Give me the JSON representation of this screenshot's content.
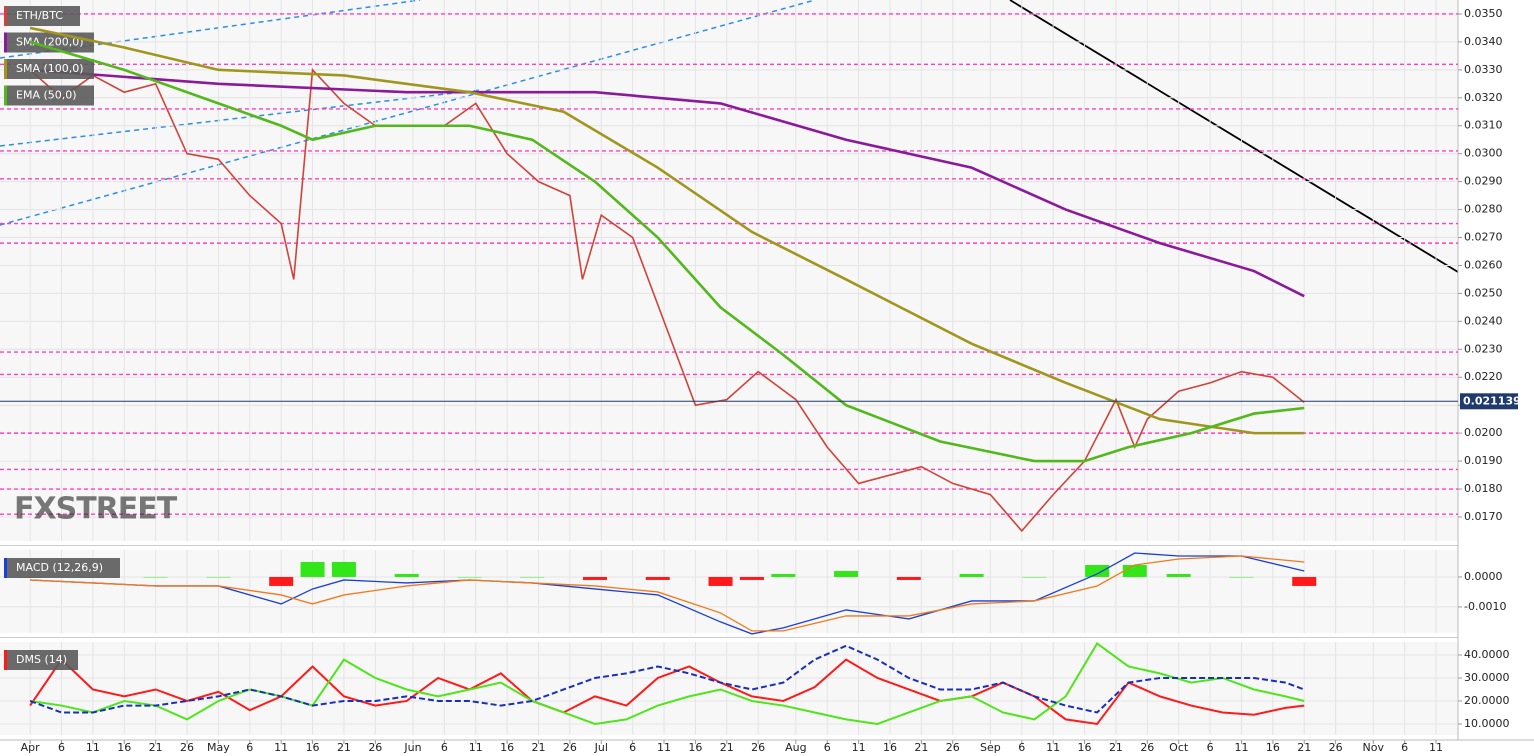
{
  "chart_data": [
    {
      "type": "line",
      "watermark": "FXSTREET",
      "xlim": [
        -4.8,
        227.5
      ],
      "ylim": [
        0.01614,
        0.0355
      ],
      "yticks": [
        {
          "value": 0.035,
          "label": "0.0350"
        },
        {
          "value": 0.034,
          "label": "0.0340"
        },
        {
          "value": 0.033,
          "label": "0.0330"
        },
        {
          "value": 0.032,
          "label": "0.0320"
        },
        {
          "value": 0.031,
          "label": "0.0310"
        },
        {
          "value": 0.03,
          "label": "0.0300"
        },
        {
          "value": 0.029,
          "label": "0.0290"
        },
        {
          "value": 0.028,
          "label": "0.0280"
        },
        {
          "value": 0.027,
          "label": "0.0270"
        },
        {
          "value": 0.026,
          "label": "0.0260"
        },
        {
          "value": 0.025,
          "label": "0.0250"
        },
        {
          "value": 0.024,
          "label": "0.0240"
        },
        {
          "value": 0.023,
          "label": "0.0230"
        },
        {
          "value": 0.022,
          "label": "0.0220"
        },
        {
          "value": 0.021,
          "label": "0.0210"
        },
        {
          "value": 0.02,
          "label": "0.0200"
        },
        {
          "value": 0.019,
          "label": "0.0190"
        },
        {
          "value": 0.018,
          "label": "0.0180"
        },
        {
          "value": 0.017,
          "label": "0.0170"
        }
      ],
      "grid": true,
      "levels": [
        0.035,
        0.0332,
        0.0316,
        0.0301,
        0.0291,
        0.0275,
        0.0268,
        0.0229,
        0.0221,
        0.02,
        0.0187,
        0.018,
        0.0171
      ],
      "level_color": "#ff3fc0",
      "last_price": {
        "value": 0.021139,
        "label": "0.021139"
      },
      "last_color": "#1e3a6e",
      "series": [
        {
          "name": "ETH/BTC",
          "color": "#d0433a",
          "x": [
            0,
            5,
            10,
            15,
            20,
            25,
            30,
            35,
            40,
            42,
            45,
            50,
            55,
            61,
            66,
            71,
            76,
            81,
            86,
            88,
            91,
            96,
            101,
            106,
            111,
            116,
            122,
            127,
            132,
            137,
            142,
            147,
            153,
            158,
            163,
            168,
            173,
            176,
            178,
            183,
            188,
            193,
            198,
            203
          ],
          "values": [
            0.033,
            0.032,
            0.0328,
            0.0322,
            0.0325,
            0.03,
            0.0298,
            0.0285,
            0.0275,
            0.0255,
            0.033,
            0.0318,
            0.031,
            0.031,
            0.031,
            0.0318,
            0.03,
            0.029,
            0.0285,
            0.0255,
            0.0278,
            0.027,
            0.024,
            0.021,
            0.0212,
            0.0222,
            0.0212,
            0.0195,
            0.0182,
            0.0185,
            0.0188,
            0.0182,
            0.0178,
            0.0165,
            0.0178,
            0.019,
            0.0212,
            0.0195,
            0.0205,
            0.0215,
            0.0218,
            0.0222,
            0.022,
            0.0211
          ]
        },
        {
          "name": "SMA (200,0)",
          "color": "#8b1a9b",
          "x": [
            0,
            30,
            60,
            90,
            110,
            130,
            150,
            165,
            180,
            195,
            203
          ],
          "values": [
            0.033,
            0.0325,
            0.0322,
            0.0322,
            0.0318,
            0.0305,
            0.0295,
            0.028,
            0.0268,
            0.0258,
            0.0249
          ]
        },
        {
          "name": "SMA (100,0)",
          "color": "#a0961e",
          "x": [
            0,
            15,
            30,
            50,
            70,
            85,
            100,
            115,
            130,
            150,
            165,
            180,
            195,
            203
          ],
          "values": [
            0.0345,
            0.0338,
            0.033,
            0.0328,
            0.0322,
            0.0315,
            0.0295,
            0.0272,
            0.0255,
            0.0232,
            0.0218,
            0.0205,
            0.02,
            0.02
          ]
        },
        {
          "name": "EMA (50,0)",
          "color": "#52b81c",
          "x": [
            0,
            15,
            30,
            40,
            45,
            55,
            70,
            80,
            90,
            100,
            110,
            120,
            130,
            145,
            160,
            168,
            175,
            185,
            195,
            203
          ],
          "values": [
            0.034,
            0.033,
            0.0318,
            0.031,
            0.0305,
            0.031,
            0.031,
            0.0305,
            0.029,
            0.027,
            0.0245,
            0.0228,
            0.021,
            0.0197,
            0.019,
            0.019,
            0.0195,
            0.02,
            0.0207,
            0.0209
          ]
        }
      ]
    },
    {
      "type": "macd",
      "title": "MACD (12,26,9)",
      "xlim": [
        -4.8,
        227.5
      ],
      "ylim": [
        -0.00187,
        0.0009
      ],
      "yticks": [
        {
          "value": 0,
          "label": "0.0000"
        },
        {
          "value": -0.001,
          "label": "-0.0010"
        }
      ],
      "x": [
        0,
        10,
        20,
        30,
        40,
        45,
        50,
        60,
        70,
        80,
        90,
        100,
        110,
        115,
        120,
        130,
        140,
        150,
        160,
        170,
        176,
        183,
        193,
        203
      ],
      "histogram": [
        0,
        0,
        0,
        0,
        -0.0003,
        0.0005,
        0.0005,
        0.0001,
        0,
        0,
        -0.0001,
        -0.0001,
        -0.0003,
        -0.0001,
        0.0001,
        0.0002,
        -0.0001,
        0.0001,
        0,
        0.0004,
        0.0004,
        0.0001,
        0,
        -0.0003
      ],
      "up_color": "#33e61a",
      "down_color": "#ff1a1a",
      "series": [
        {
          "color": "#1a3fd6",
          "values": [
            -0.0001,
            -0.0002,
            -0.0003,
            -0.0003,
            -0.0009,
            -0.0004,
            -0.0001,
            -0.0002,
            -0.0001,
            -0.0002,
            -0.0004,
            -0.0006,
            -0.0015,
            -0.0019,
            -0.0017,
            -0.0011,
            -0.0014,
            -0.0008,
            -0.0008,
            0.0001,
            0.0008,
            0.0007,
            0.0007,
            0.0002
          ]
        },
        {
          "color": "#f07a1a",
          "values": [
            -0.0001,
            -0.0002,
            -0.0003,
            -0.0003,
            -0.0006,
            -0.0009,
            -0.0006,
            -0.0003,
            -0.0001,
            -0.0002,
            -0.0003,
            -0.0005,
            -0.0012,
            -0.0018,
            -0.0018,
            -0.0013,
            -0.0013,
            -0.0009,
            -0.0008,
            -0.0003,
            0.0004,
            0.0006,
            0.0007,
            0.0005
          ]
        }
      ]
    },
    {
      "type": "dms",
      "title": "DMS (14)",
      "xlim": [
        -4.8,
        227.5
      ],
      "ylim": [
        5.2,
        45.65
      ],
      "yticks": [
        {
          "value": 40,
          "label": "40.0000"
        },
        {
          "value": 30,
          "label": "30.0000"
        },
        {
          "value": 20,
          "label": "20.0000"
        },
        {
          "value": 10,
          "label": "10.0000"
        }
      ],
      "xticks": [
        {
          "value": 0,
          "label": "Apr"
        },
        {
          "value": 5,
          "label": "6"
        },
        {
          "value": 10,
          "label": "11"
        },
        {
          "value": 15,
          "label": "16"
        },
        {
          "value": 20,
          "label": "21"
        },
        {
          "value": 25,
          "label": "26"
        },
        {
          "value": 30,
          "label": "May"
        },
        {
          "value": 35,
          "label": "6"
        },
        {
          "value": 40,
          "label": "11"
        },
        {
          "value": 45,
          "label": "16"
        },
        {
          "value": 50,
          "label": "21"
        },
        {
          "value": 55,
          "label": "26"
        },
        {
          "value": 61,
          "label": "Jun"
        },
        {
          "value": 66,
          "label": "6"
        },
        {
          "value": 71,
          "label": "11"
        },
        {
          "value": 76,
          "label": "16"
        },
        {
          "value": 81,
          "label": "21"
        },
        {
          "value": 86,
          "label": "26"
        },
        {
          "value": 91,
          "label": "Jul"
        },
        {
          "value": 96,
          "label": "6"
        },
        {
          "value": 101,
          "label": "11"
        },
        {
          "value": 106,
          "label": "16"
        },
        {
          "value": 111,
          "label": "21"
        },
        {
          "value": 116,
          "label": "26"
        },
        {
          "value": 122,
          "label": "Aug"
        },
        {
          "value": 127,
          "label": "6"
        },
        {
          "value": 132,
          "label": "11"
        },
        {
          "value": 137,
          "label": "16"
        },
        {
          "value": 142,
          "label": "21"
        },
        {
          "value": 147,
          "label": "26"
        },
        {
          "value": 153,
          "label": "Sep"
        },
        {
          "value": 158,
          "label": "6"
        },
        {
          "value": 163,
          "label": "11"
        },
        {
          "value": 168,
          "label": "16"
        },
        {
          "value": 173,
          "label": "21"
        },
        {
          "value": 178,
          "label": "26"
        },
        {
          "value": 183,
          "label": "Oct"
        },
        {
          "value": 188,
          "label": "6"
        },
        {
          "value": 193,
          "label": "11"
        },
        {
          "value": 198,
          "label": "16"
        },
        {
          "value": 203,
          "label": "21"
        },
        {
          "value": 208,
          "label": "26"
        },
        {
          "value": 214,
          "label": "Nov"
        },
        {
          "value": 219,
          "label": "6"
        },
        {
          "value": 224,
          "label": "11"
        }
      ],
      "x": [
        0,
        5,
        10,
        15,
        20,
        25,
        30,
        35,
        40,
        45,
        50,
        55,
        60,
        65,
        70,
        75,
        80,
        85,
        90,
        95,
        100,
        105,
        110,
        115,
        120,
        125,
        130,
        135,
        140,
        145,
        150,
        155,
        160,
        165,
        170,
        175,
        180,
        185,
        190,
        195,
        200,
        203
      ],
      "series": [
        {
          "color": "#ff1a1a",
          "values": [
            18,
            38,
            25,
            22,
            25,
            20,
            24,
            16,
            22,
            35,
            22,
            18,
            20,
            30,
            25,
            32,
            20,
            15,
            22,
            18,
            30,
            35,
            28,
            22,
            20,
            26,
            38,
            30,
            25,
            20,
            22,
            28,
            22,
            12,
            10,
            28,
            22,
            18,
            15,
            14,
            17,
            18
          ]
        },
        {
          "color": "#4ee61a",
          "values": [
            20,
            18,
            15,
            20,
            18,
            12,
            20,
            25,
            22,
            18,
            38,
            30,
            25,
            22,
            25,
            28,
            20,
            15,
            10,
            12,
            18,
            22,
            25,
            20,
            18,
            15,
            12,
            10,
            15,
            20,
            22,
            15,
            12,
            22,
            45,
            35,
            32,
            28,
            30,
            25,
            22,
            20
          ]
        },
        {
          "color": "#1a2fb8",
          "dashed": true,
          "values": [
            20,
            15,
            15,
            18,
            18,
            20,
            22,
            25,
            22,
            18,
            20,
            20,
            22,
            20,
            20,
            18,
            20,
            25,
            30,
            32,
            35,
            32,
            28,
            25,
            28,
            38,
            44,
            38,
            30,
            25,
            25,
            28,
            22,
            18,
            15,
            28,
            30,
            30,
            30,
            30,
            28,
            25
          ]
        }
      ]
    }
  ]
}
